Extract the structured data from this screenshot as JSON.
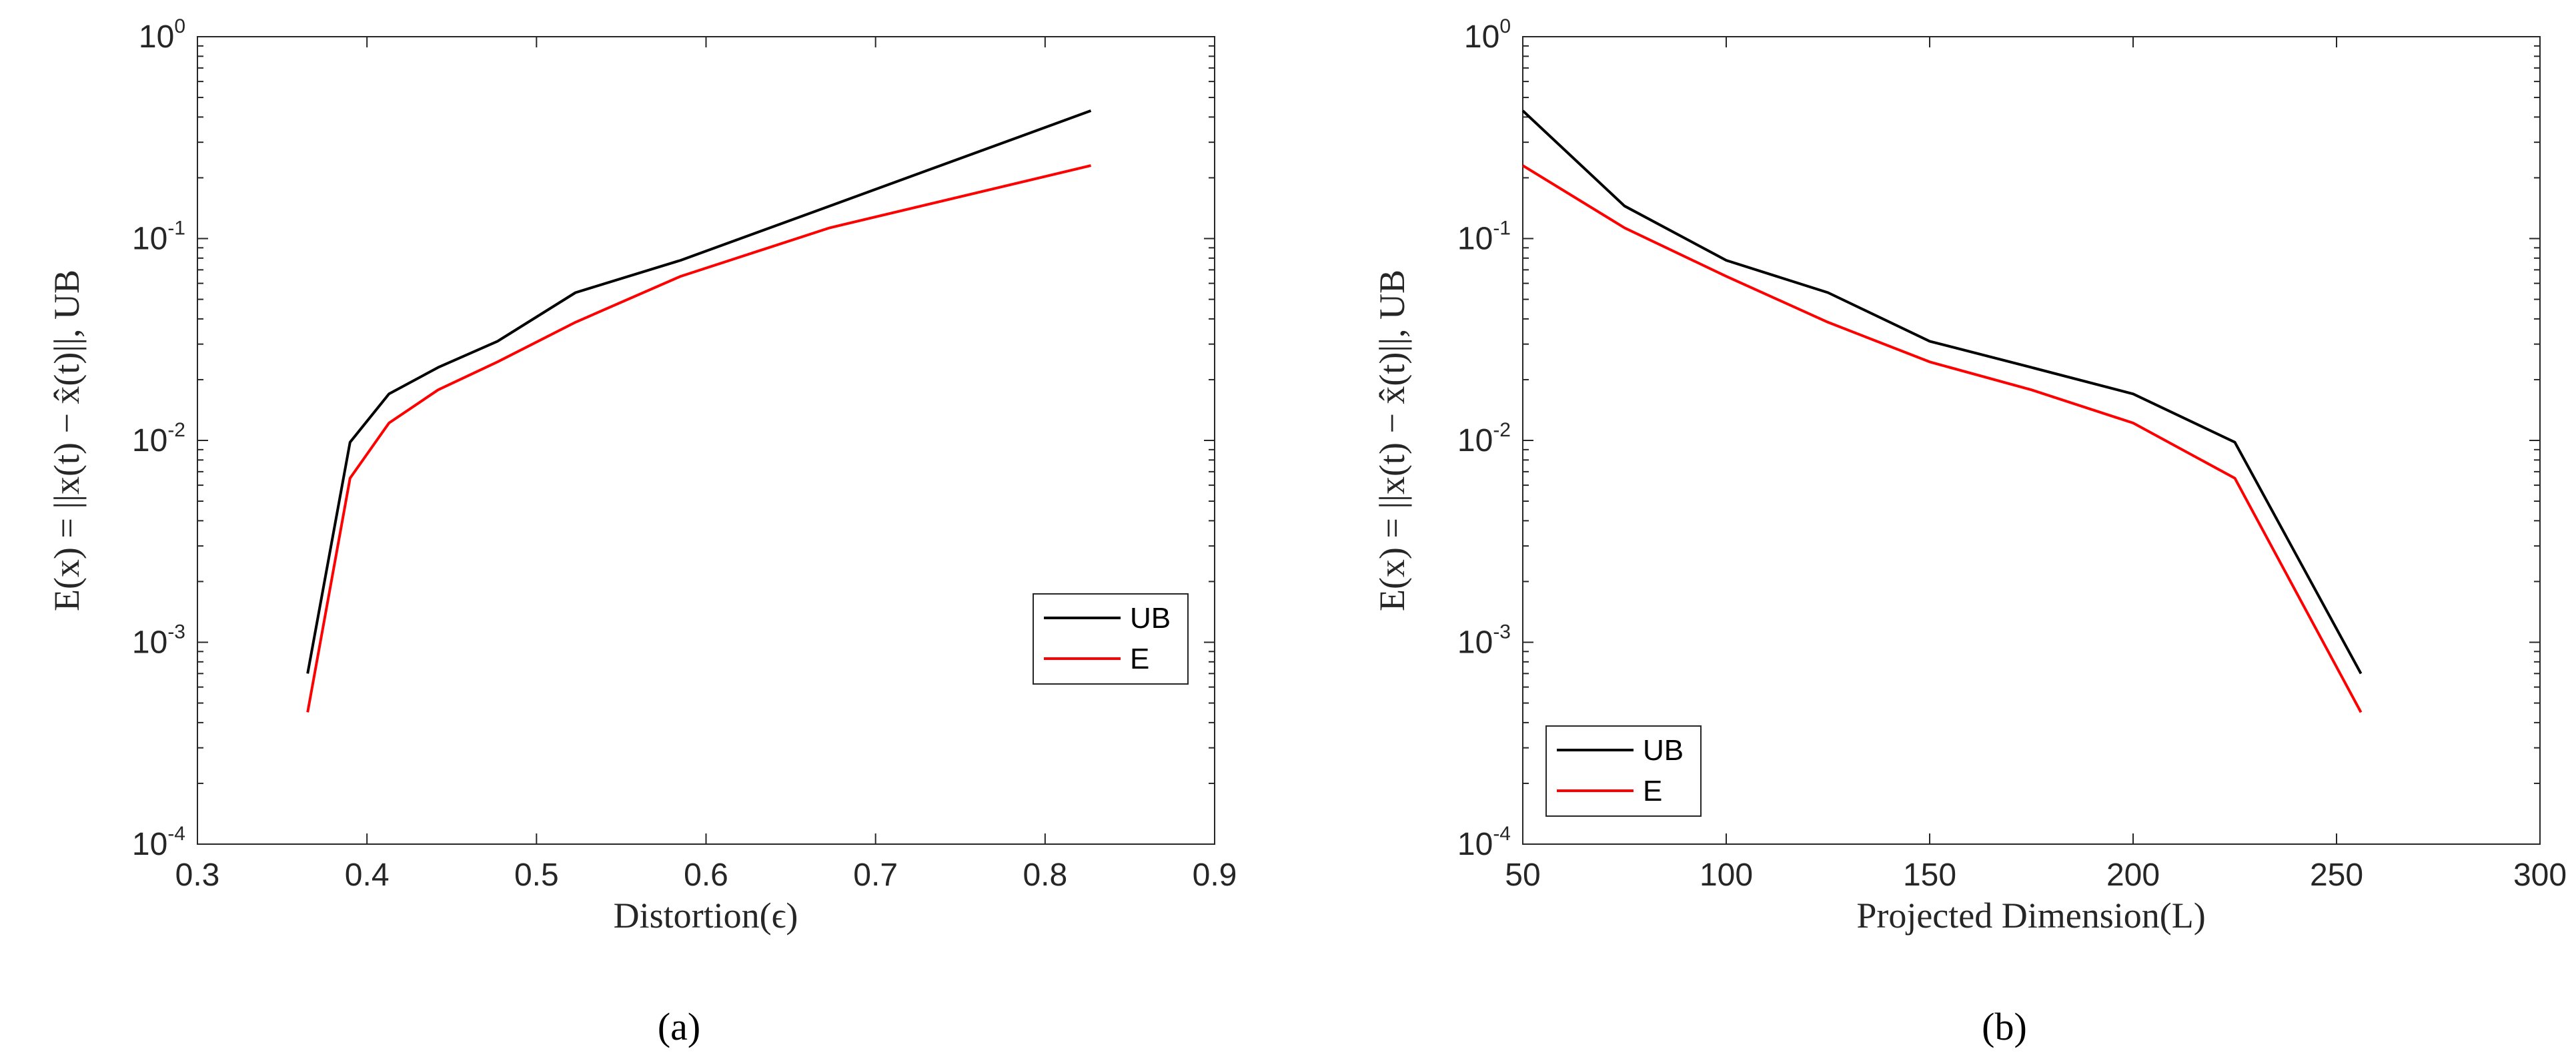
{
  "chart_data": [
    {
      "type": "line",
      "panel": "a",
      "caption": "(a)",
      "xlabel": "Distortion(ϵ)",
      "ylabel": "E(x) = ||x(t) − x̂(t)||, UB",
      "yscale": "log",
      "xlim": [
        0.3,
        0.9
      ],
      "ylim": [
        0.0001,
        1
      ],
      "xticks": [
        "0.3",
        "0.4",
        "0.5",
        "0.6",
        "0.7",
        "0.8",
        "0.9"
      ],
      "xtick_values": [
        0.3,
        0.4,
        0.5,
        0.6,
        0.7,
        0.8,
        0.9
      ],
      "yticks": [
        {
          "base": "10",
          "exp": "-4",
          "value": 0.0001
        },
        {
          "base": "10",
          "exp": "-3",
          "value": 0.001
        },
        {
          "base": "10",
          "exp": "-2",
          "value": 0.01
        },
        {
          "base": "10",
          "exp": "-1",
          "value": 0.1
        },
        {
          "base": "10",
          "exp": "0",
          "value": 1
        }
      ],
      "legend_position": "lower-right",
      "series": [
        {
          "name": "UB",
          "color": "#000000",
          "x": [
            0.365,
            0.39,
            0.413,
            0.442,
            0.477,
            0.523,
            0.585,
            0.673,
            0.827
          ],
          "y": [
            0.0007,
            0.0098,
            0.017,
            0.023,
            0.031,
            0.054,
            0.078,
            0.145,
            0.43
          ]
        },
        {
          "name": "E",
          "color": "#ff0000",
          "x": [
            0.365,
            0.39,
            0.413,
            0.442,
            0.477,
            0.523,
            0.585,
            0.673,
            0.827
          ],
          "y": [
            0.00045,
            0.0065,
            0.0122,
            0.0178,
            0.0245,
            0.0385,
            0.065,
            0.113,
            0.23
          ]
        }
      ]
    },
    {
      "type": "line",
      "panel": "b",
      "caption": "(b)",
      "xlabel": "Projected Dimension(L)",
      "ylabel": "E(x) = ||x(t) − x̂(t)||, UB",
      "yscale": "log",
      "xlim": [
        50,
        300
      ],
      "ylim": [
        0.0001,
        1
      ],
      "xticks": [
        "50",
        "100",
        "150",
        "200",
        "250",
        "300"
      ],
      "xtick_values": [
        50,
        100,
        150,
        200,
        250,
        300
      ],
      "yticks": [
        {
          "base": "10",
          "exp": "-4",
          "value": 0.0001
        },
        {
          "base": "10",
          "exp": "-3",
          "value": 0.001
        },
        {
          "base": "10",
          "exp": "-2",
          "value": 0.01
        },
        {
          "base": "10",
          "exp": "-1",
          "value": 0.1
        },
        {
          "base": "10",
          "exp": "0",
          "value": 1
        }
      ],
      "legend_position": "lower-left",
      "series": [
        {
          "name": "UB",
          "color": "#000000",
          "x": [
            50,
            75,
            100,
            125,
            150,
            175,
            200,
            225,
            256
          ],
          "y": [
            0.43,
            0.145,
            0.078,
            0.054,
            0.031,
            0.023,
            0.017,
            0.0098,
            0.0007
          ]
        },
        {
          "name": "E",
          "color": "#ff0000",
          "x": [
            50,
            75,
            100,
            125,
            150,
            175,
            200,
            225,
            256
          ],
          "y": [
            0.23,
            0.113,
            0.065,
            0.0385,
            0.0245,
            0.0178,
            0.0122,
            0.0065,
            0.00045
          ]
        }
      ]
    }
  ]
}
